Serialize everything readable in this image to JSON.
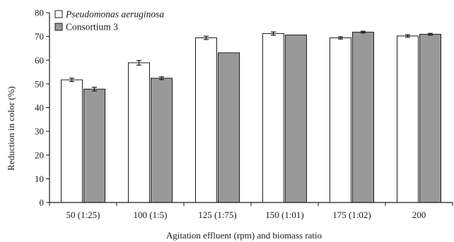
{
  "chart_data": {
    "type": "bar",
    "xlabel": "Agitation effluent (rpm) and biomass ratio",
    "ylabel": "Reduction in color (%)",
    "ylim": [
      0,
      80
    ],
    "yticks": [
      0,
      10,
      20,
      30,
      40,
      50,
      60,
      70,
      80
    ],
    "categories": [
      "50 (1:25)",
      "100 (1:5)",
      "125 (1:75)",
      "150 (1:01)",
      "175 (1:02)",
      "200"
    ],
    "series": [
      {
        "name": "Pseudomonas aeruginosa",
        "color": "#ffffff",
        "values": [
          51.7,
          58.9,
          69.4,
          71.2,
          69.4,
          70.2
        ],
        "errors": [
          0.7,
          1.0,
          0.7,
          0.7,
          0.5,
          0.5
        ]
      },
      {
        "name": "Consortium 3",
        "color": "#999999",
        "values": [
          47.8,
          52.4,
          63.1,
          70.6,
          71.8,
          70.9
        ],
        "errors": [
          0.8,
          0.6,
          0.0,
          0.0,
          0.4,
          0.4
        ]
      }
    ],
    "legend_position": "top-left",
    "grid": false,
    "error_bars": true
  }
}
